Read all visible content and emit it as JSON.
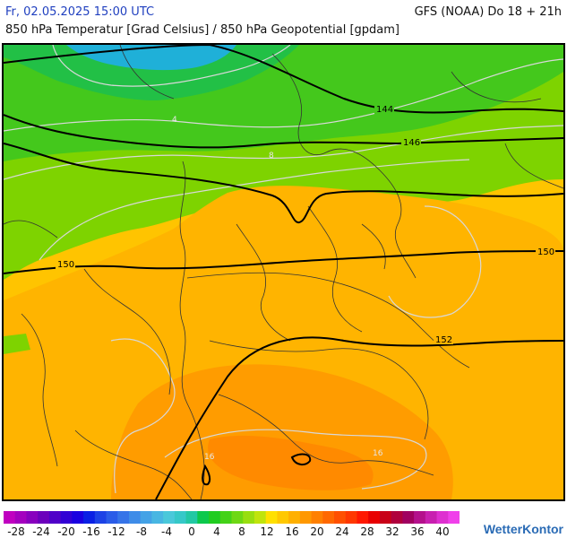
{
  "header": {
    "date": "Fr, 02.05.2025 15:00 UTC",
    "model": "GFS (NOAA) Do 18 + 21h",
    "title": "850 hPa Temperatur [Grad Celsius] / 850 hPa Geopotential [gpdam]"
  },
  "map": {
    "geopotential_labels": [
      "144",
      "146",
      "150",
      "150",
      "152"
    ],
    "isotherm_labels": [
      "4",
      "8",
      "16",
      "16"
    ]
  },
  "scale": {
    "labels": [
      "-28",
      "-24",
      "-20",
      "-16",
      "-12",
      "-8",
      "-4",
      "0",
      "4",
      "8",
      "12",
      "16",
      "20",
      "24",
      "28",
      "32",
      "36",
      "40"
    ],
    "colors": [
      "#c000c0",
      "#a400bf",
      "#8800be",
      "#6c00bc",
      "#5000c8",
      "#3200d4",
      "#1a00e0",
      "#0a20e4",
      "#1c42e6",
      "#2a5ce8",
      "#3674e8",
      "#3e8ce8",
      "#44a2e6",
      "#48b6e2",
      "#4ac8da",
      "#36c8c8",
      "#22c8a4",
      "#0cc84c",
      "#20cc20",
      "#44d218",
      "#6ed814",
      "#98de10",
      "#c0e40c",
      "#ffe000",
      "#ffc800",
      "#ffb000",
      "#ff9800",
      "#ff8000",
      "#ff6800",
      "#ff5000",
      "#ff3800",
      "#ff1800",
      "#e80000",
      "#c80018",
      "#b0003c",
      "#a00060",
      "#b4108c",
      "#c820b0",
      "#de30d0",
      "#f040ea"
    ]
  },
  "brand": "WetterKontor"
}
